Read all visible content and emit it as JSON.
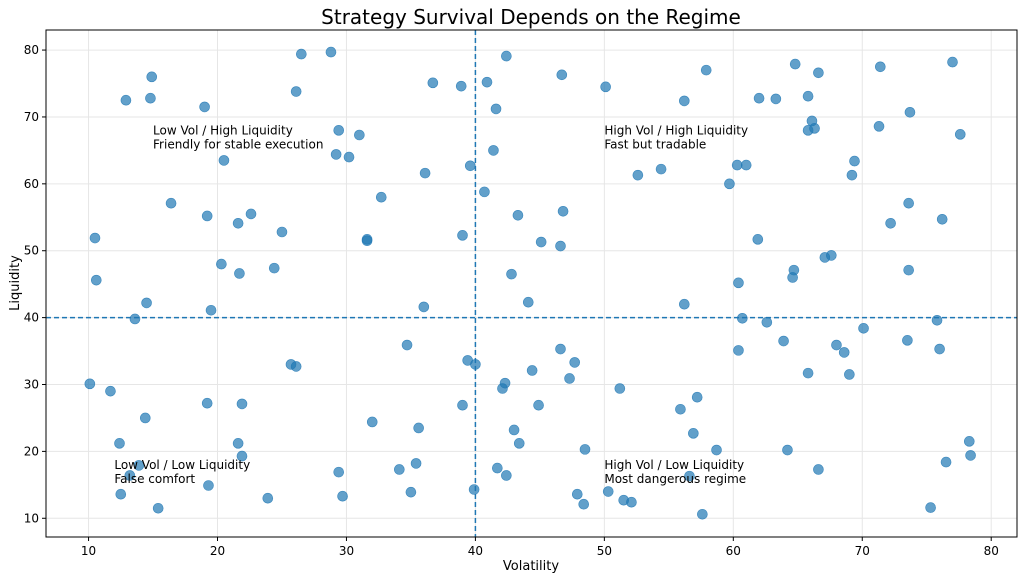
{
  "chart_data": {
    "type": "scatter",
    "title": "Strategy Survival Depends on the Regime",
    "xlabel": "Volatility",
    "ylabel": "Liquidity",
    "xlim": [
      6.7,
      82.0
    ],
    "ylim": [
      7.2,
      83.0
    ],
    "xticks": [
      "10",
      "20",
      "30",
      "40",
      "50",
      "60",
      "70",
      "80"
    ],
    "yticks": [
      "10",
      "20",
      "30",
      "40",
      "50",
      "60",
      "70",
      "80"
    ],
    "grid": true,
    "point_color": "#1f77b4",
    "threshold_color": "#1f77b4",
    "thresholds": {
      "x": 40,
      "y": 40
    },
    "annotations": [
      {
        "x": 15,
        "y": 65.3,
        "lines": [
          "Low Vol / High Liquidity",
          "Friendly for stable execution"
        ]
      },
      {
        "x": 50,
        "y": 65.3,
        "lines": [
          "High Vol / High Liquidity",
          "Fast but tradable"
        ]
      },
      {
        "x": 12,
        "y": 15.3,
        "lines": [
          "Low Vol / Low Liquidity",
          "False comfort"
        ]
      },
      {
        "x": 50,
        "y": 15.3,
        "lines": [
          "High Vol / Low Liquidity",
          "Most dangerous regime"
        ]
      }
    ],
    "points": [
      [
        10.1,
        30.1
      ],
      [
        10.5,
        51.9
      ],
      [
        10.6,
        45.6
      ],
      [
        12.9,
        72.5
      ],
      [
        14.9,
        76.0
      ],
      [
        14.8,
        72.8
      ],
      [
        19.0,
        71.5
      ],
      [
        16.4,
        57.1
      ],
      [
        19.2,
        55.2
      ],
      [
        20.5,
        63.5
      ],
      [
        21.6,
        54.1
      ],
      [
        22.6,
        55.5
      ],
      [
        20.3,
        48.0
      ],
      [
        21.7,
        46.6
      ],
      [
        24.4,
        47.4
      ],
      [
        25.0,
        52.8
      ],
      [
        26.1,
        73.8
      ],
      [
        26.5,
        79.4
      ],
      [
        28.8,
        79.7
      ],
      [
        29.4,
        68.0
      ],
      [
        31.0,
        67.3
      ],
      [
        29.2,
        64.4
      ],
      [
        30.2,
        64.0
      ],
      [
        32.7,
        58.0
      ],
      [
        31.6,
        51.7
      ],
      [
        31.6,
        51.5
      ],
      [
        36.1,
        61.6
      ],
      [
        36.7,
        75.1
      ],
      [
        38.9,
        74.6
      ],
      [
        40.9,
        75.2
      ],
      [
        42.4,
        79.1
      ],
      [
        39.6,
        62.7
      ],
      [
        41.6,
        71.2
      ],
      [
        41.4,
        65.0
      ],
      [
        40.7,
        58.8
      ],
      [
        39.0,
        52.3
      ],
      [
        43.3,
        55.3
      ],
      [
        45.1,
        51.3
      ],
      [
        42.8,
        46.5
      ],
      [
        44.1,
        42.3
      ],
      [
        36.0,
        41.6
      ],
      [
        46.7,
        76.3
      ],
      [
        50.1,
        74.5
      ],
      [
        46.8,
        55.9
      ],
      [
        46.6,
        50.7
      ],
      [
        52.6,
        61.3
      ],
      [
        54.4,
        62.2
      ],
      [
        57.9,
        77.0
      ],
      [
        56.2,
        72.4
      ],
      [
        60.3,
        62.8
      ],
      [
        61.0,
        62.8
      ],
      [
        59.7,
        60.0
      ],
      [
        62.0,
        72.8
      ],
      [
        63.3,
        72.7
      ],
      [
        64.8,
        77.9
      ],
      [
        66.6,
        76.6
      ],
      [
        65.8,
        73.1
      ],
      [
        66.1,
        69.4
      ],
      [
        65.8,
        68.0
      ],
      [
        66.3,
        68.3
      ],
      [
        71.4,
        77.5
      ],
      [
        77.0,
        78.2
      ],
      [
        71.3,
        68.6
      ],
      [
        73.7,
        70.7
      ],
      [
        77.6,
        67.4
      ],
      [
        69.4,
        63.4
      ],
      [
        69.2,
        61.3
      ],
      [
        61.9,
        51.7
      ],
      [
        73.6,
        57.1
      ],
      [
        76.2,
        54.7
      ],
      [
        72.2,
        54.1
      ],
      [
        67.6,
        49.3
      ],
      [
        67.1,
        49.0
      ],
      [
        64.7,
        47.1
      ],
      [
        64.6,
        46.0
      ],
      [
        73.6,
        47.1
      ],
      [
        60.4,
        45.2
      ],
      [
        56.2,
        42.0
      ],
      [
        60.7,
        39.9
      ],
      [
        62.6,
        39.3
      ],
      [
        70.1,
        38.4
      ],
      [
        75.8,
        39.6
      ],
      [
        13.6,
        39.8
      ],
      [
        14.5,
        42.2
      ],
      [
        19.5,
        41.1
      ],
      [
        25.7,
        33.0
      ],
      [
        26.1,
        32.7
      ],
      [
        34.7,
        35.9
      ],
      [
        39.4,
        33.6
      ],
      [
        40.0,
        33.0
      ],
      [
        46.6,
        35.3
      ],
      [
        47.7,
        33.3
      ],
      [
        47.3,
        30.9
      ],
      [
        42.3,
        30.2
      ],
      [
        42.1,
        29.4
      ],
      [
        44.4,
        32.1
      ],
      [
        51.2,
        29.4
      ],
      [
        60.4,
        35.1
      ],
      [
        63.9,
        36.5
      ],
      [
        68.0,
        35.9
      ],
      [
        68.6,
        34.8
      ],
      [
        65.8,
        31.7
      ],
      [
        69.0,
        31.5
      ],
      [
        73.5,
        36.6
      ],
      [
        76.0,
        35.3
      ],
      [
        11.7,
        29.0
      ],
      [
        19.2,
        27.2
      ],
      [
        21.9,
        27.1
      ],
      [
        14.4,
        25.0
      ],
      [
        12.4,
        21.2
      ],
      [
        21.6,
        21.2
      ],
      [
        21.9,
        19.3
      ],
      [
        13.9,
        17.9
      ],
      [
        13.2,
        16.4
      ],
      [
        12.5,
        13.6
      ],
      [
        15.4,
        11.5
      ],
      [
        19.3,
        14.9
      ],
      [
        23.9,
        13.0
      ],
      [
        32.0,
        24.4
      ],
      [
        29.4,
        16.9
      ],
      [
        29.7,
        13.3
      ],
      [
        34.1,
        17.3
      ],
      [
        35.4,
        18.2
      ],
      [
        35.6,
        23.5
      ],
      [
        35.0,
        13.9
      ],
      [
        39.0,
        26.9
      ],
      [
        39.9,
        14.3
      ],
      [
        41.7,
        17.5
      ],
      [
        42.4,
        16.4
      ],
      [
        43.0,
        23.2
      ],
      [
        43.4,
        21.2
      ],
      [
        44.9,
        26.9
      ],
      [
        48.5,
        20.3
      ],
      [
        47.9,
        13.6
      ],
      [
        48.4,
        12.1
      ],
      [
        50.3,
        14.0
      ],
      [
        51.5,
        12.7
      ],
      [
        52.1,
        12.4
      ],
      [
        55.9,
        26.3
      ],
      [
        57.2,
        28.1
      ],
      [
        56.9,
        22.7
      ],
      [
        58.7,
        20.2
      ],
      [
        56.6,
        16.3
      ],
      [
        57.6,
        10.6
      ],
      [
        64.2,
        20.2
      ],
      [
        66.6,
        17.3
      ],
      [
        76.5,
        18.4
      ],
      [
        78.3,
        21.5
      ],
      [
        78.4,
        19.4
      ],
      [
        75.3,
        11.6
      ]
    ]
  }
}
